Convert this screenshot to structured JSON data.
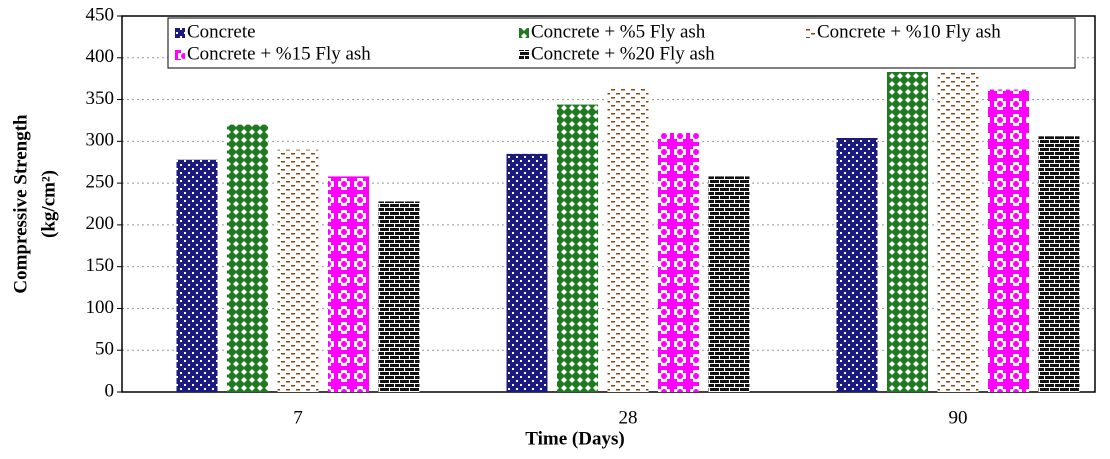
{
  "chart_data": {
    "type": "bar",
    "x_label": "Time (Days)",
    "y_label": [
      "Compressive Strength",
      "(kg/cm²)"
    ],
    "categories": [
      "7",
      "28",
      "90"
    ],
    "series": [
      {
        "name": "Concrete",
        "color": "#1a1a80",
        "values": [
          278,
          285,
          304
        ]
      },
      {
        "name": "Concrete + %5 Fly ash",
        "color": "#1e7a1e",
        "values": [
          320,
          344,
          383
        ]
      },
      {
        "name": "Concrete + %10 Fly ash",
        "color": "#8b4513",
        "values": [
          290,
          363,
          384
        ]
      },
      {
        "name": "Concrete + %15 Fly ash",
        "color": "#ff00ff",
        "values": [
          258,
          310,
          362
        ]
      },
      {
        "name": "Concrete + %20 Fly ash",
        "color": "#111111",
        "values": [
          228,
          258,
          306
        ]
      }
    ],
    "ylim": [
      0,
      450
    ],
    "yticks": [
      0,
      50,
      100,
      150,
      200,
      250,
      300,
      350,
      400,
      450
    ],
    "grid": true
  }
}
